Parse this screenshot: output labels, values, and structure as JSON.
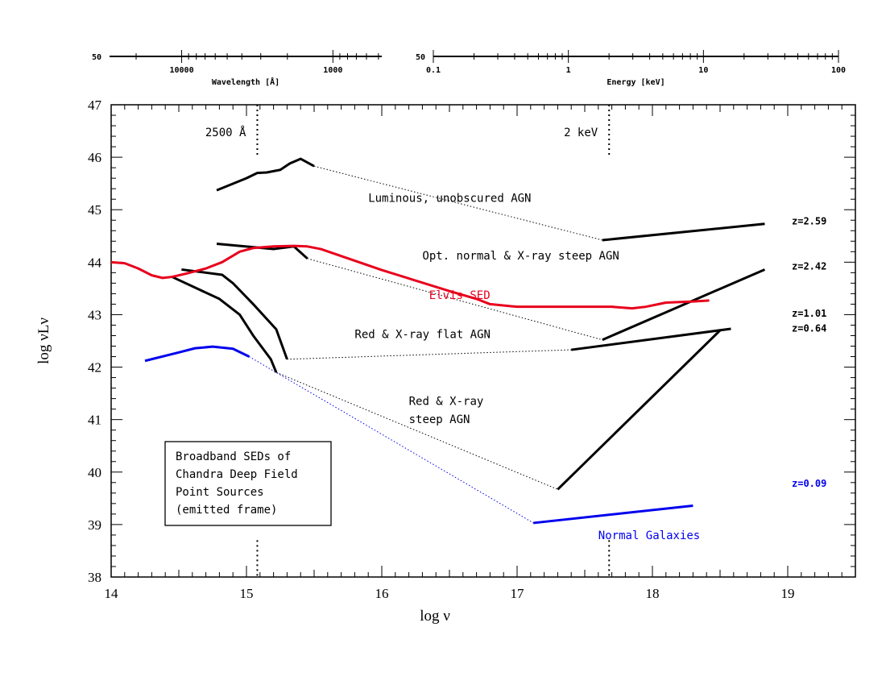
{
  "chart_data": {
    "type": "line",
    "xlabel": "log ν",
    "ylabel": "log νLν",
    "xlim": [
      14,
      19.5
    ],
    "ylim": [
      38,
      47
    ],
    "x_ticks": [
      14,
      15,
      16,
      17,
      18,
      19
    ],
    "y_ticks": [
      38,
      39,
      40,
      41,
      42,
      43,
      44,
      45,
      46,
      47
    ],
    "top_axes": [
      {
        "label": "Wavelength [Å]",
        "range_label": "50",
        "tick_labels": [
          {
            "text": "10000",
            "log_nu": 14.477
          },
          {
            "text": "1000",
            "log_nu": 15.477
          }
        ]
      },
      {
        "label": "Energy [keV]",
        "range_label": "50",
        "tick_labels": [
          {
            "text": "0.1",
            "log_nu": 16.383
          },
          {
            "text": "1",
            "log_nu": 17.383
          },
          {
            "text": "10",
            "log_nu": 18.383
          },
          {
            "text": "100",
            "log_nu": 19.383
          }
        ]
      }
    ],
    "reference_markers": [
      {
        "label": "2500 Å",
        "log_nu": 15.08
      },
      {
        "label": "2 keV",
        "log_nu": 17.68
      }
    ],
    "series": [
      {
        "name": "",
        "style": "black",
        "points": [
          [
            14.78,
            45.37
          ],
          [
            15.0,
            45.6
          ],
          [
            15.08,
            45.7
          ],
          [
            15.15,
            45.71
          ],
          [
            15.25,
            45.76
          ],
          [
            15.32,
            45.88
          ],
          [
            15.4,
            45.97
          ],
          [
            15.5,
            45.83
          ]
        ]
      },
      {
        "name": "",
        "style": "black",
        "points": [
          [
            17.63,
            44.42
          ],
          [
            18.83,
            44.73
          ]
        ]
      },
      {
        "name": "",
        "style": "black",
        "points": [
          [
            14.78,
            44.35
          ],
          [
            15.2,
            44.25
          ],
          [
            15.35,
            44.3
          ],
          [
            15.45,
            44.07
          ]
        ]
      },
      {
        "name": "",
        "style": "black",
        "points": [
          [
            17.63,
            42.52
          ],
          [
            18.83,
            43.86
          ]
        ]
      },
      {
        "name": "",
        "style": "black",
        "points": [
          [
            14.52,
            43.86
          ],
          [
            14.82,
            43.76
          ],
          [
            14.9,
            43.6
          ],
          [
            15.05,
            43.2
          ],
          [
            15.22,
            42.72
          ],
          [
            15.3,
            42.15
          ]
        ]
      },
      {
        "name": "",
        "style": "black",
        "points": [
          [
            17.4,
            42.33
          ],
          [
            18.58,
            42.73
          ]
        ]
      },
      {
        "name": "",
        "style": "black",
        "points": [
          [
            14.45,
            43.72
          ],
          [
            14.8,
            43.3
          ],
          [
            14.95,
            43.0
          ],
          [
            15.05,
            42.6
          ],
          [
            15.18,
            42.15
          ],
          [
            15.22,
            41.9
          ]
        ]
      },
      {
        "name": "",
        "style": "black",
        "points": [
          [
            17.3,
            39.67
          ],
          [
            18.5,
            42.7
          ]
        ]
      },
      {
        "name": "Elvis SED",
        "style": "red",
        "points": [
          [
            14.0,
            44.0
          ],
          [
            14.1,
            43.98
          ],
          [
            14.2,
            43.88
          ],
          [
            14.3,
            43.75
          ],
          [
            14.38,
            43.7
          ],
          [
            14.45,
            43.72
          ],
          [
            14.55,
            43.78
          ],
          [
            14.7,
            43.88
          ],
          [
            14.82,
            44.0
          ],
          [
            14.95,
            44.2
          ],
          [
            15.05,
            44.27
          ],
          [
            15.2,
            44.3
          ],
          [
            15.35,
            44.31
          ],
          [
            15.45,
            44.3
          ],
          [
            15.55,
            44.25
          ],
          [
            16.0,
            43.85
          ],
          [
            16.5,
            43.45
          ],
          [
            16.7,
            43.3
          ],
          [
            16.8,
            43.2
          ],
          [
            17.0,
            43.15
          ],
          [
            17.5,
            43.15
          ],
          [
            17.7,
            43.15
          ],
          [
            17.85,
            43.12
          ],
          [
            17.95,
            43.15
          ],
          [
            18.1,
            43.23
          ],
          [
            18.3,
            43.25
          ],
          [
            18.42,
            43.27
          ]
        ]
      },
      {
        "name": "",
        "style": "blue",
        "points": [
          [
            14.25,
            42.12
          ],
          [
            14.5,
            42.28
          ],
          [
            14.62,
            42.36
          ],
          [
            14.75,
            42.39
          ],
          [
            14.9,
            42.35
          ],
          [
            15.02,
            42.2
          ]
        ]
      },
      {
        "name": "",
        "style": "blue",
        "points": [
          [
            17.12,
            39.03
          ],
          [
            18.3,
            39.36
          ]
        ]
      }
    ],
    "connectors": [
      {
        "style": "black-dotted",
        "points": [
          [
            15.5,
            45.83
          ],
          [
            17.63,
            44.42
          ]
        ]
      },
      {
        "style": "black-dotted",
        "points": [
          [
            15.45,
            44.07
          ],
          [
            17.63,
            42.52
          ]
        ]
      },
      {
        "style": "black-dotted",
        "points": [
          [
            15.3,
            42.15
          ],
          [
            17.4,
            42.33
          ]
        ]
      },
      {
        "style": "black-dotted",
        "points": [
          [
            15.22,
            41.9
          ],
          [
            17.3,
            39.67
          ]
        ]
      },
      {
        "style": "blue-dotted",
        "points": [
          [
            15.02,
            42.2
          ],
          [
            17.12,
            39.03
          ]
        ]
      }
    ],
    "annotations": [
      {
        "text": "Luminous, unobscured AGN",
        "x": 15.9,
        "y": 45.15,
        "color": "black"
      },
      {
        "text": "Opt. normal & X-ray steep AGN",
        "x": 16.3,
        "y": 44.05,
        "color": "black"
      },
      {
        "text": "Elvis SED",
        "x": 16.35,
        "y": 43.3,
        "color": "red"
      },
      {
        "text": "Red & X-ray flat AGN",
        "x": 15.8,
        "y": 42.55,
        "color": "black"
      },
      {
        "text": "Red & X-ray",
        "x": 16.2,
        "y": 41.28,
        "color": "black"
      },
      {
        "text": "steep AGN",
        "x": 16.2,
        "y": 40.93,
        "color": "black"
      },
      {
        "text": "Normal Galaxies",
        "x": 17.6,
        "y": 38.72,
        "color": "blue"
      }
    ],
    "redshift_labels": [
      {
        "text": "z=2.59",
        "y": 44.72,
        "color": "black"
      },
      {
        "text": "z=2.42",
        "y": 43.86,
        "color": "black"
      },
      {
        "text": "z=1.01",
        "y": 42.96,
        "color": "black"
      },
      {
        "text": "z=0.64",
        "y": 42.68,
        "color": "black"
      },
      {
        "text": "z=0.09",
        "y": 39.72,
        "color": "blue"
      }
    ],
    "inset_box": {
      "lines": [
        "Broadband SEDs of",
        "Chandra Deep Field",
        "Point Sources",
        "(emitted frame)"
      ]
    },
    "colors": {
      "black": "#000000",
      "red": "#e8001c",
      "blue": "#0000ee"
    }
  }
}
